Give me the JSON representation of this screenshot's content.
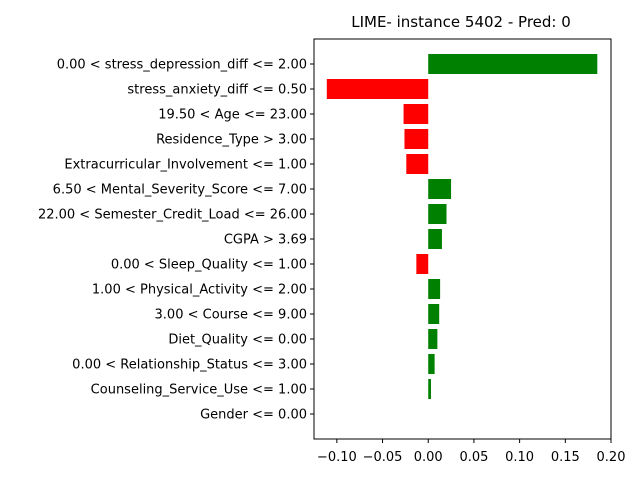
{
  "chart_data": {
    "type": "bar",
    "orientation": "horizontal",
    "title": "LIME- instance 5402 - Pred: 0",
    "xlabel": "",
    "ylabel": "",
    "xlim": [
      -0.125,
      0.2
    ],
    "xticks": [
      -0.1,
      -0.05,
      0.0,
      0.05,
      0.1,
      0.15,
      0.2
    ],
    "xtick_labels": [
      "−0.10",
      "−0.05",
      "0.00",
      "0.05",
      "0.10",
      "0.15",
      "0.20"
    ],
    "grid": false,
    "positive_color": "#008000",
    "negative_color": "#ff0000",
    "categories": [
      "0.00 < stress_depression_diff <= 2.00",
      "stress_anxiety_diff <= 0.50",
      "19.50 < Age <= 23.00",
      "Residence_Type > 3.00",
      "Extracurricular_Involvement <= 1.00",
      "6.50 < Mental_Severity_Score <= 7.00",
      "22.00 < Semester_Credit_Load <= 26.00",
      "CGPA > 3.69",
      "0.00 < Sleep_Quality <= 1.00",
      "1.00 < Physical_Activity <= 2.00",
      "3.00 < Course <= 9.00",
      "Diet_Quality <= 0.00",
      "0.00 < Relationship_Status <= 3.00",
      "Counseling_Service_Use <= 1.00",
      "Gender <= 0.00"
    ],
    "values": [
      0.185,
      -0.111,
      -0.027,
      -0.026,
      -0.024,
      0.025,
      0.02,
      0.015,
      -0.013,
      0.013,
      0.012,
      0.01,
      0.007,
      0.003,
      0.0
    ]
  }
}
